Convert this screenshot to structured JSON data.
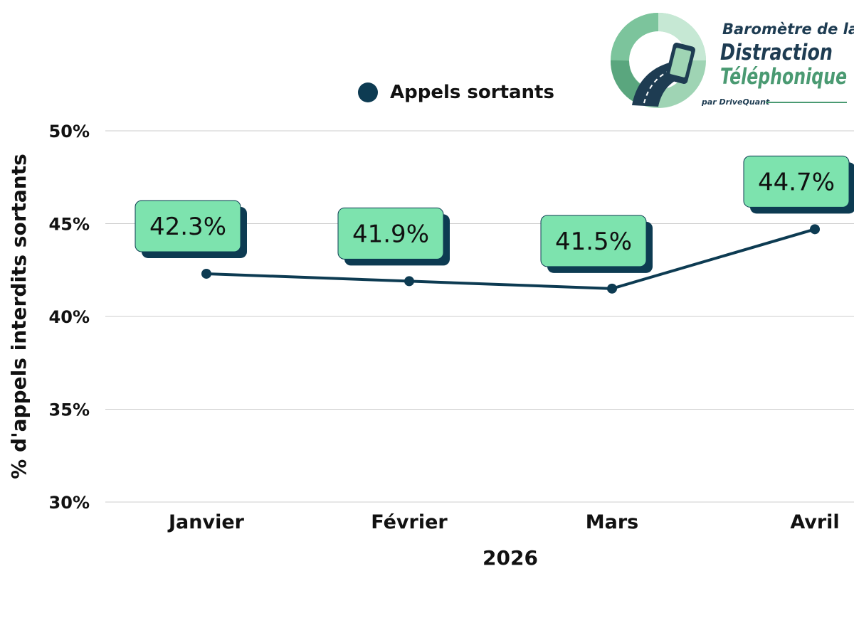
{
  "chart_data": {
    "type": "line",
    "categories": [
      "Janvier",
      "Février",
      "Mars",
      "Avril"
    ],
    "series": [
      {
        "name": "Appels sortants",
        "values": [
          42.3,
          41.9,
          41.5,
          44.7
        ],
        "labels": [
          "42.3%",
          "41.9%",
          "41.5%",
          "44.7%"
        ]
      }
    ],
    "xlabel": "2026",
    "ylabel": "% d'appels interdits sortants",
    "ylim": [
      30,
      50
    ],
    "yticks": [
      {
        "value": 30,
        "label": "30%"
      },
      {
        "value": 35,
        "label": "35%"
      },
      {
        "value": 40,
        "label": "40%"
      },
      {
        "value": 45,
        "label": "45%"
      },
      {
        "value": 50,
        "label": "50%"
      }
    ],
    "grid": true,
    "legend_position": "top",
    "colors": {
      "line": "#0d3b52",
      "label_fill": "#7de3ae",
      "label_shadow": "#0d3b52",
      "grid": "#cccccc"
    }
  },
  "logo": {
    "line1": "Baromètre de la",
    "line2": "Distraction",
    "line3": "Téléphonique",
    "line4": "par DriveQuant",
    "colors": {
      "dark": "#1e3c52",
      "green": "#4a9a72",
      "light_green": "#9fd4b4",
      "pale_green": "#c6e8d4"
    }
  }
}
